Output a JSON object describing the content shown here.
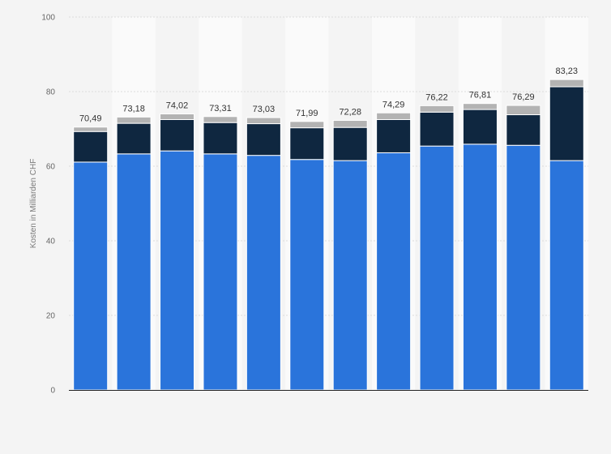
{
  "chart_data": {
    "type": "bar",
    "stacked": true,
    "title": "",
    "xlabel": "",
    "ylabel": "Kosten in Milliarden CHF",
    "ylim": [
      0,
      100
    ],
    "yticks": [
      "0",
      "20",
      "40",
      "60",
      "80",
      "100"
    ],
    "grid": true,
    "legend": "none",
    "categories": [
      "",
      "",
      "",
      "",
      "",
      "",
      "",
      "",
      "",
      "",
      "",
      ""
    ],
    "totals": [
      70.49,
      73.18,
      74.02,
      73.31,
      73.03,
      71.99,
      72.28,
      74.29,
      76.22,
      76.81,
      76.29,
      83.23
    ],
    "total_labels": [
      "70,49",
      "73,18",
      "74,02",
      "73,31",
      "73,03",
      "71,99",
      "72,28",
      "74,29",
      "76,22",
      "76,81",
      "76,29",
      "83,23"
    ],
    "series": [
      {
        "color": "#2a74db",
        "values": [
          61.1,
          63.3,
          64.1,
          63.3,
          62.9,
          61.8,
          61.5,
          63.6,
          65.4,
          65.9,
          65.6,
          61.5
        ]
      },
      {
        "color": "#0f2740",
        "values": [
          8.2,
          8.2,
          8.4,
          8.4,
          8.5,
          8.5,
          8.9,
          8.9,
          9.1,
          9.3,
          8.2,
          19.8
        ]
      },
      {
        "color": "#b3b3b3",
        "values": [
          1.19,
          1.68,
          1.52,
          1.61,
          1.63,
          1.69,
          1.88,
          1.79,
          1.72,
          1.61,
          2.49,
          1.93
        ]
      }
    ],
    "colors": {
      "background": "#f4f4f4",
      "band": "#fafafa",
      "grid": "#dcdcdc",
      "axis": "#222222"
    }
  }
}
